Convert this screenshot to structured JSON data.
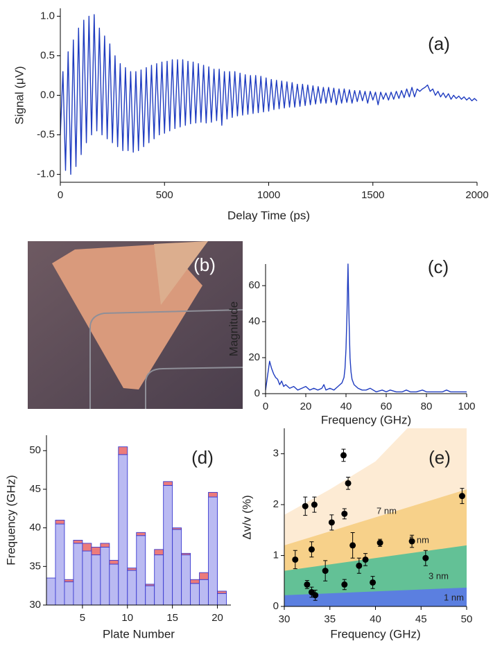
{
  "chart_data": [
    {
      "type": "line",
      "annotation": "(a)",
      "x_label": "Delay Time (ps)",
      "y_label": "Signal (μV)",
      "xlim": [
        0,
        2000
      ],
      "ylim": [
        -1.1,
        1.1
      ],
      "xticks": [
        0,
        500,
        1000,
        1500,
        2000
      ],
      "yticks": [
        {
          "value": -1,
          "label": "-1.0"
        },
        {
          "value": -0.5,
          "label": "-0.5"
        },
        {
          "value": 0,
          "label": "0.0"
        },
        {
          "value": 0.5,
          "label": "0.5"
        },
        {
          "value": 1,
          "label": "1.0"
        }
      ],
      "x": [
        0,
        12.5,
        25,
        37.5,
        50,
        62.5,
        75,
        87.5,
        100,
        112.5,
        125,
        137.5,
        150,
        162.5,
        175,
        187.5,
        200,
        212.5,
        225,
        237.5,
        250,
        262.5,
        275,
        287.5,
        300,
        312.5,
        325,
        337.5,
        350,
        362.5,
        375,
        387.5,
        400,
        412.5,
        425,
        437.5,
        450,
        462.5,
        475,
        487.5,
        500,
        512.5,
        525,
        537.5,
        550,
        562.5,
        575,
        587.5,
        600,
        612.5,
        625,
        637.5,
        650,
        662.5,
        675,
        687.5,
        700,
        712.5,
        725,
        737.5,
        750,
        762.5,
        775,
        787.5,
        800,
        812.5,
        825,
        837.5,
        850,
        862.5,
        875,
        887.5,
        900,
        912.5,
        925,
        937.5,
        950,
        962.5,
        975,
        987.5,
        1000,
        1012.5,
        1025,
        1037.5,
        1050,
        1062.5,
        1075,
        1087.5,
        1100,
        1112.5,
        1125,
        1137.5,
        1150,
        1162.5,
        1175,
        1187.5,
        1200,
        1212.5,
        1225,
        1237.5,
        1250,
        1262.5,
        1275,
        1287.5,
        1300,
        1312.5,
        1325,
        1337.5,
        1350,
        1362.5,
        1375,
        1387.5,
        1400,
        1412.5,
        1425,
        1437.5,
        1450,
        1462.5,
        1475,
        1487.5,
        1500,
        1512.5,
        1525,
        1537.5,
        1550,
        1562.5,
        1575,
        1587.5,
        1600,
        1612.5,
        1625,
        1637.5,
        1650,
        1662.5,
        1675,
        1687.5,
        1700,
        1712.5,
        1725,
        1737.5,
        1750,
        1762.5,
        1775,
        1787.5,
        1800,
        1812.5,
        1825,
        1837.5,
        1850,
        1862.5,
        1875,
        1887.5,
        1900,
        1912.5,
        1925,
        1937.5,
        1950,
        1962.5,
        1975,
        1987.5,
        2000
      ],
      "series": [
        {
          "color": "#1f3cc0",
          "values": [
            -0.5,
            0.3,
            -0.95,
            0.55,
            -1.0,
            0.7,
            -0.9,
            0.85,
            -0.75,
            0.95,
            -0.6,
            1.0,
            -0.5,
            1.02,
            -0.45,
            0.85,
            -0.5,
            0.75,
            -0.55,
            0.65,
            -0.6,
            0.5,
            -0.65,
            0.4,
            -0.7,
            0.35,
            -0.7,
            0.3,
            -0.72,
            0.3,
            -0.7,
            0.32,
            -0.65,
            0.35,
            -0.6,
            0.38,
            -0.55,
            0.4,
            -0.5,
            0.42,
            -0.48,
            0.43,
            -0.45,
            0.45,
            -0.42,
            0.45,
            -0.4,
            0.45,
            -0.38,
            0.43,
            -0.36,
            0.42,
            -0.35,
            0.4,
            -0.34,
            0.38,
            -0.35,
            0.36,
            -0.34,
            0.33,
            -0.32,
            0.33,
            -0.38,
            0.3,
            -0.3,
            0.3,
            -0.28,
            0.3,
            -0.26,
            0.28,
            -0.25,
            0.26,
            -0.24,
            0.25,
            -0.23,
            0.25,
            -0.22,
            0.24,
            -0.21,
            0.22,
            -0.2,
            0.2,
            -0.18,
            0.19,
            -0.17,
            0.18,
            -0.16,
            0.17,
            -0.15,
            0.16,
            -0.15,
            0.14,
            -0.14,
            0.14,
            -0.13,
            0.13,
            -0.12,
            0.12,
            -0.11,
            0.11,
            -0.1,
            0.1,
            -0.1,
            0.1,
            -0.09,
            0.09,
            -0.12,
            0.08,
            -0.1,
            0.08,
            -0.09,
            0.07,
            -0.1,
            0.06,
            -0.08,
            0.06,
            -0.07,
            0.05,
            -0.1,
            0.05,
            -0.06,
            0.04,
            -0.12,
            0.04,
            -0.05,
            0.03,
            -0.06,
            0.04,
            -0.05,
            0.05,
            -0.04,
            0.06,
            -0.03,
            0.08,
            -0.02,
            0.1,
            -0.02,
            0.08,
            0.05,
            0.08,
            0.1,
            0.13,
            0.05,
            0.08,
            0.0,
            0.05,
            -0.02,
            0.03,
            -0.03,
            0.02,
            -0.05,
            0.0,
            -0.04,
            -0.01,
            -0.05,
            -0.02,
            -0.06,
            -0.03,
            -0.07,
            -0.04,
            -0.07
          ]
        }
      ]
    },
    {
      "type": "line",
      "annotation": "(c)",
      "x_label": "Frequency (GHz)",
      "y_label": "Magnitude",
      "xlim": [
        0,
        100
      ],
      "ylim": [
        0,
        72
      ],
      "xticks": [
        0,
        20,
        40,
        60,
        80,
        100
      ],
      "yticks": [
        0,
        20,
        40,
        60
      ],
      "x": [
        0,
        1,
        2,
        3,
        4,
        5,
        6,
        7,
        8,
        9,
        10,
        12,
        14,
        16,
        18,
        20,
        22,
        24,
        26,
        28,
        29,
        30,
        32,
        34,
        36,
        37,
        38,
        39,
        39.5,
        40,
        40.5,
        41,
        41.5,
        42,
        42.5,
        43,
        44,
        46,
        48,
        50,
        52,
        55,
        58,
        60,
        62,
        65,
        68,
        70,
        72,
        75,
        78,
        80,
        82,
        85,
        88,
        90,
        92,
        95,
        98,
        100
      ],
      "series": [
        {
          "color": "#1f3cc0",
          "values": [
            2,
            10,
            18,
            14,
            11,
            9,
            8,
            5,
            7,
            4,
            5,
            3,
            4,
            2,
            3,
            4,
            2,
            3,
            2,
            3,
            5,
            2,
            3,
            2,
            4,
            5,
            6,
            9,
            14,
            25,
            45,
            72,
            42,
            20,
            12,
            8,
            5,
            3,
            2,
            2,
            3,
            1,
            2,
            1,
            2,
            1,
            1,
            2,
            1,
            1,
            2,
            1,
            1,
            1,
            1,
            2,
            1,
            1,
            1,
            1
          ]
        }
      ]
    },
    {
      "type": "bar",
      "annotation": "(d)",
      "x_label": "Plate Number",
      "y_label": "Frequency (GHz)",
      "xlim": [
        1,
        21.5
      ],
      "ylim": [
        30,
        52
      ],
      "xticks": [
        5,
        10,
        15,
        20
      ],
      "yticks": [
        30,
        35,
        40,
        45,
        50
      ],
      "x": [
        1,
        2,
        3,
        4,
        5,
        6,
        7,
        8,
        9,
        10,
        11,
        12,
        13,
        14,
        15,
        16,
        17,
        18,
        19,
        20
      ],
      "series": [
        {
          "color": "#babaf2",
          "values": [
            33.5,
            40.5,
            33.0,
            38.0,
            37.0,
            36.5,
            37.5,
            35.3,
            49.5,
            34.5,
            39.0,
            32.5,
            36.5,
            45.5,
            39.8,
            36.5,
            32.8,
            33.3,
            44.0,
            31.5
          ]
        },
        {
          "color": "#ec7b7b",
          "values": [
            0,
            0.5,
            0.3,
            0.4,
            1.0,
            1.0,
            0.5,
            0.5,
            1.0,
            0.3,
            0.4,
            0.2,
            0.7,
            0.5,
            0.2,
            0.2,
            0.5,
            0.9,
            0.6,
            0.3
          ]
        }
      ]
    },
    {
      "type": "scatter",
      "annotation": "(e)",
      "x_label": "Frequency (GHz)",
      "y_label": "Δv/v (%)",
      "xlim": [
        30,
        50
      ],
      "ylim": [
        0,
        3.5
      ],
      "xticks": [
        30,
        35,
        40,
        45,
        50
      ],
      "yticks": [
        0,
        1,
        2,
        3
      ],
      "bands": [
        {
          "name": "7 nm",
          "color": "#fdebd4",
          "x": [
            30,
            35,
            40,
            43.5,
            50
          ],
          "values": [
            1.8,
            2.3,
            2.85,
            3.5,
            3.5
          ]
        },
        {
          "name": "5 nm",
          "color": "#f7d18a",
          "x": [
            30,
            50
          ],
          "values": [
            1.2,
            2.3
          ]
        },
        {
          "name": "3 nm",
          "color": "#63c196",
          "x": [
            30,
            50
          ],
          "values": [
            0.7,
            1.2
          ]
        },
        {
          "name": "1 nm",
          "color": "#5b7fe0",
          "x": [
            30,
            50
          ],
          "values": [
            0.22,
            0.37
          ]
        }
      ],
      "series": [
        {
          "color": "#000000",
          "x": [
            31.2,
            32.3,
            32.5,
            33.0,
            33.0,
            33.3,
            33.4,
            34.5,
            35.2,
            36.5,
            36.6,
            36.6,
            37.0,
            37.5,
            38.2,
            38.9,
            39.7,
            40.5,
            44.0,
            45.5,
            49.5
          ],
          "values": [
            0.92,
            1.97,
            0.43,
            1.12,
            0.28,
            2.0,
            0.22,
            0.7,
            1.65,
            2.97,
            1.82,
            0.43,
            2.42,
            1.2,
            0.8,
            0.92,
            0.47,
            1.25,
            1.28,
            0.95,
            2.17
          ],
          "errors": [
            0.18,
            0.18,
            0.08,
            0.15,
            0.1,
            0.15,
            0.1,
            0.2,
            0.15,
            0.12,
            0.1,
            0.1,
            0.12,
            0.25,
            0.15,
            0.12,
            0.12,
            0.07,
            0.12,
            0.15,
            0.15
          ]
        }
      ]
    }
  ],
  "photo": {
    "label": "(b)"
  }
}
